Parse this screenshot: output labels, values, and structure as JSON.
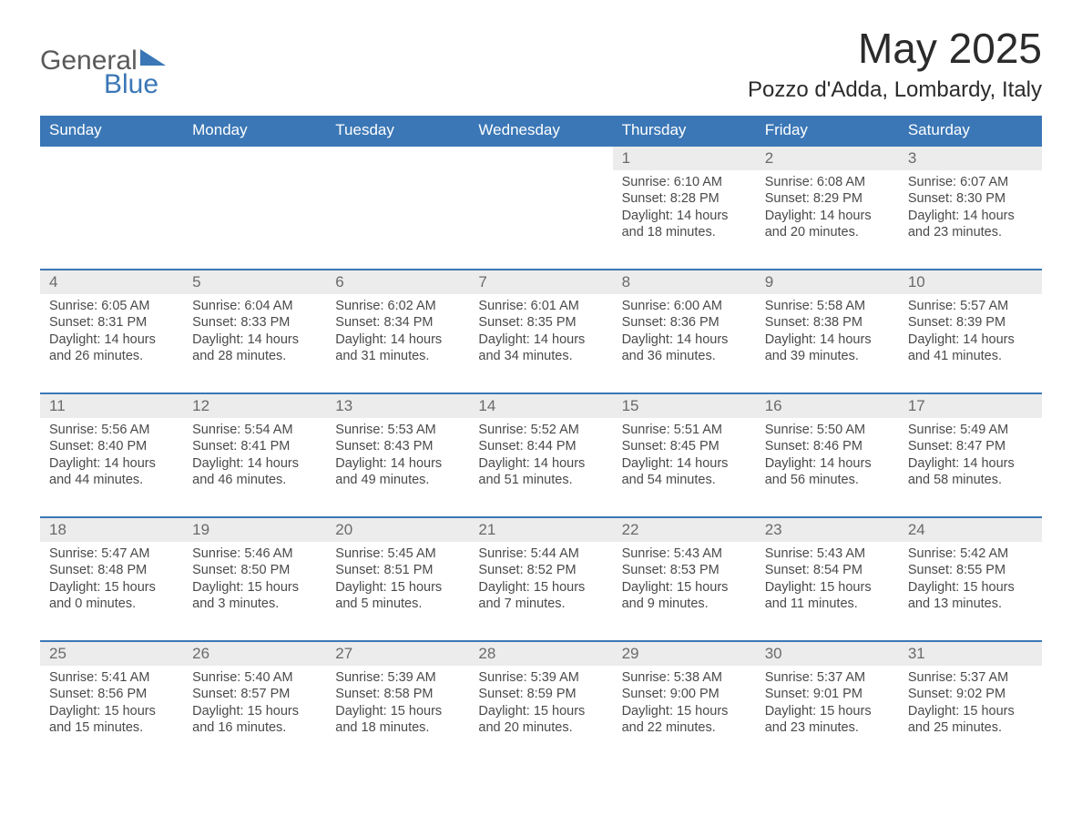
{
  "colors": {
    "header_bg": "#3b77b6",
    "header_text": "#ffffff",
    "daynum_bg": "#ececec",
    "daynum_text": "#6a6a6a",
    "body_text": "#4a4a4a",
    "row_border": "#3b77b6",
    "page_bg": "#ffffff",
    "logo_gray": "#5a5a5a",
    "logo_blue": "#3b77b6"
  },
  "logo": {
    "text1": "General",
    "text2": "Blue"
  },
  "title": "May 2025",
  "location": "Pozzo d'Adda, Lombardy, Italy",
  "weekdays": [
    "Sunday",
    "Monday",
    "Tuesday",
    "Wednesday",
    "Thursday",
    "Friday",
    "Saturday"
  ],
  "weeks": [
    [
      null,
      null,
      null,
      null,
      {
        "d": "1",
        "sr": "6:10 AM",
        "ss": "8:28 PM",
        "dl": "14 hours and 18 minutes."
      },
      {
        "d": "2",
        "sr": "6:08 AM",
        "ss": "8:29 PM",
        "dl": "14 hours and 20 minutes."
      },
      {
        "d": "3",
        "sr": "6:07 AM",
        "ss": "8:30 PM",
        "dl": "14 hours and 23 minutes."
      }
    ],
    [
      {
        "d": "4",
        "sr": "6:05 AM",
        "ss": "8:31 PM",
        "dl": "14 hours and 26 minutes."
      },
      {
        "d": "5",
        "sr": "6:04 AM",
        "ss": "8:33 PM",
        "dl": "14 hours and 28 minutes."
      },
      {
        "d": "6",
        "sr": "6:02 AM",
        "ss": "8:34 PM",
        "dl": "14 hours and 31 minutes."
      },
      {
        "d": "7",
        "sr": "6:01 AM",
        "ss": "8:35 PM",
        "dl": "14 hours and 34 minutes."
      },
      {
        "d": "8",
        "sr": "6:00 AM",
        "ss": "8:36 PM",
        "dl": "14 hours and 36 minutes."
      },
      {
        "d": "9",
        "sr": "5:58 AM",
        "ss": "8:38 PM",
        "dl": "14 hours and 39 minutes."
      },
      {
        "d": "10",
        "sr": "5:57 AM",
        "ss": "8:39 PM",
        "dl": "14 hours and 41 minutes."
      }
    ],
    [
      {
        "d": "11",
        "sr": "5:56 AM",
        "ss": "8:40 PM",
        "dl": "14 hours and 44 minutes."
      },
      {
        "d": "12",
        "sr": "5:54 AM",
        "ss": "8:41 PM",
        "dl": "14 hours and 46 minutes."
      },
      {
        "d": "13",
        "sr": "5:53 AM",
        "ss": "8:43 PM",
        "dl": "14 hours and 49 minutes."
      },
      {
        "d": "14",
        "sr": "5:52 AM",
        "ss": "8:44 PM",
        "dl": "14 hours and 51 minutes."
      },
      {
        "d": "15",
        "sr": "5:51 AM",
        "ss": "8:45 PM",
        "dl": "14 hours and 54 minutes."
      },
      {
        "d": "16",
        "sr": "5:50 AM",
        "ss": "8:46 PM",
        "dl": "14 hours and 56 minutes."
      },
      {
        "d": "17",
        "sr": "5:49 AM",
        "ss": "8:47 PM",
        "dl": "14 hours and 58 minutes."
      }
    ],
    [
      {
        "d": "18",
        "sr": "5:47 AM",
        "ss": "8:48 PM",
        "dl": "15 hours and 0 minutes."
      },
      {
        "d": "19",
        "sr": "5:46 AM",
        "ss": "8:50 PM",
        "dl": "15 hours and 3 minutes."
      },
      {
        "d": "20",
        "sr": "5:45 AM",
        "ss": "8:51 PM",
        "dl": "15 hours and 5 minutes."
      },
      {
        "d": "21",
        "sr": "5:44 AM",
        "ss": "8:52 PM",
        "dl": "15 hours and 7 minutes."
      },
      {
        "d": "22",
        "sr": "5:43 AM",
        "ss": "8:53 PM",
        "dl": "15 hours and 9 minutes."
      },
      {
        "d": "23",
        "sr": "5:43 AM",
        "ss": "8:54 PM",
        "dl": "15 hours and 11 minutes."
      },
      {
        "d": "24",
        "sr": "5:42 AM",
        "ss": "8:55 PM",
        "dl": "15 hours and 13 minutes."
      }
    ],
    [
      {
        "d": "25",
        "sr": "5:41 AM",
        "ss": "8:56 PM",
        "dl": "15 hours and 15 minutes."
      },
      {
        "d": "26",
        "sr": "5:40 AM",
        "ss": "8:57 PM",
        "dl": "15 hours and 16 minutes."
      },
      {
        "d": "27",
        "sr": "5:39 AM",
        "ss": "8:58 PM",
        "dl": "15 hours and 18 minutes."
      },
      {
        "d": "28",
        "sr": "5:39 AM",
        "ss": "8:59 PM",
        "dl": "15 hours and 20 minutes."
      },
      {
        "d": "29",
        "sr": "5:38 AM",
        "ss": "9:00 PM",
        "dl": "15 hours and 22 minutes."
      },
      {
        "d": "30",
        "sr": "5:37 AM",
        "ss": "9:01 PM",
        "dl": "15 hours and 23 minutes."
      },
      {
        "d": "31",
        "sr": "5:37 AM",
        "ss": "9:02 PM",
        "dl": "15 hours and 25 minutes."
      }
    ]
  ],
  "labels": {
    "sunrise": "Sunrise: ",
    "sunset": "Sunset: ",
    "daylight": "Daylight: "
  }
}
